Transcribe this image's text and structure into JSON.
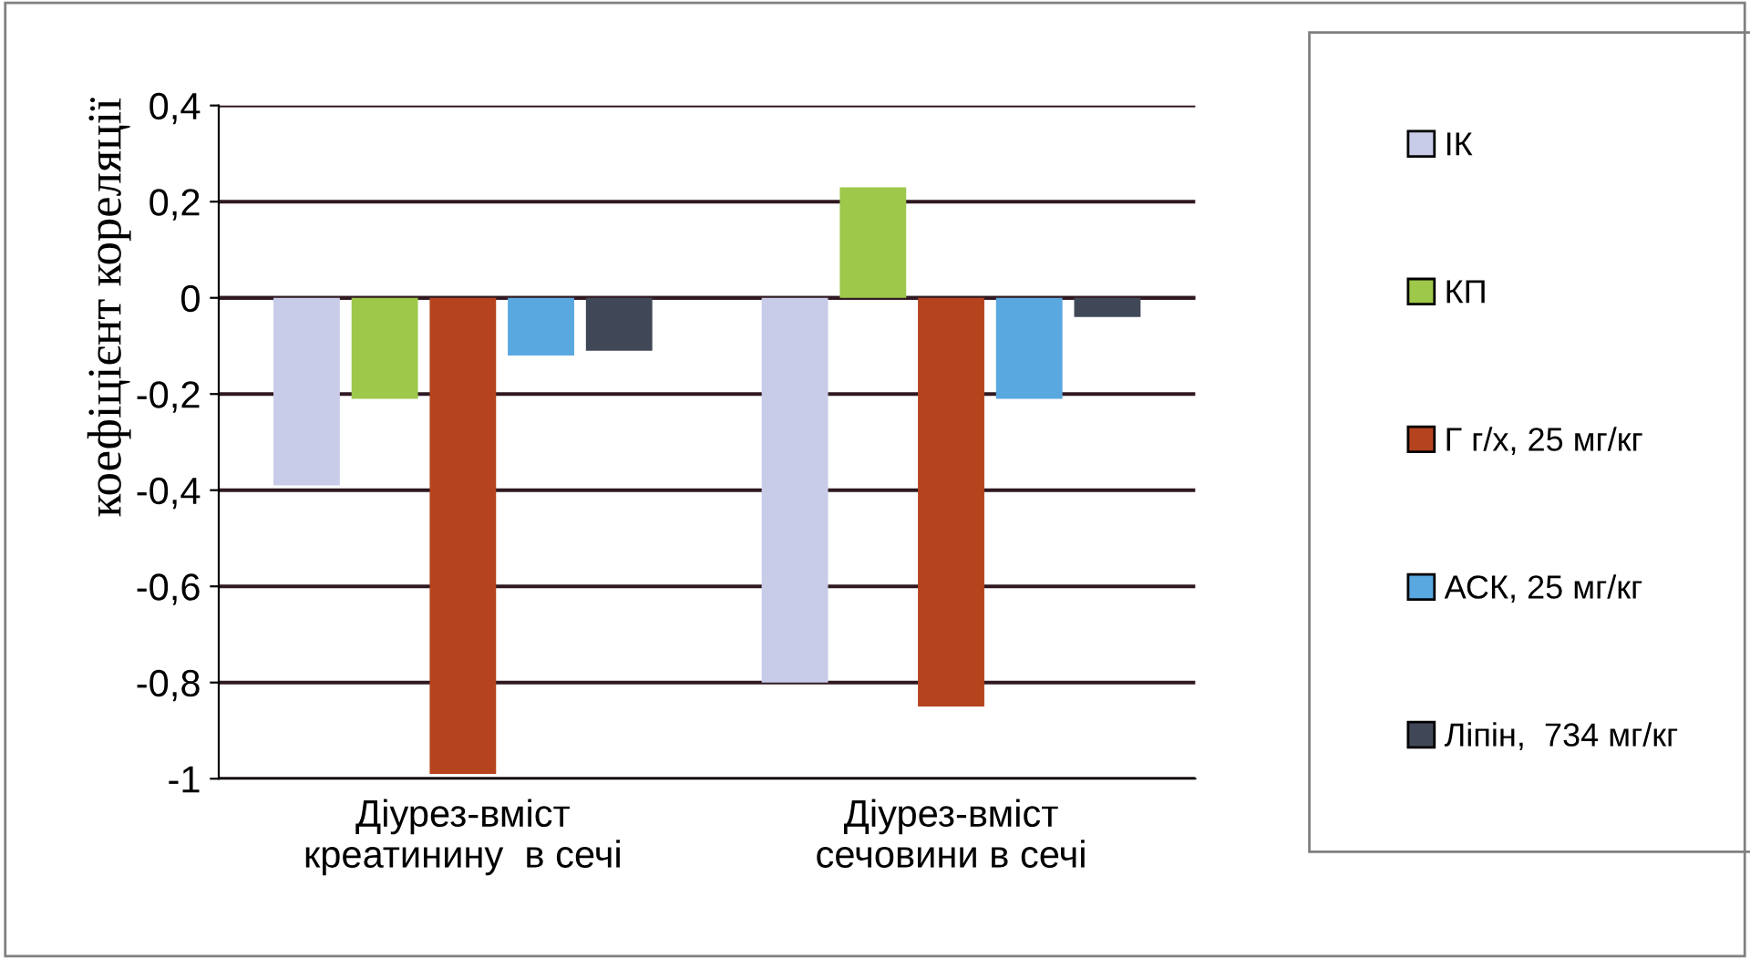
{
  "chart_data": {
    "type": "bar",
    "ylabel": "коефіцієнт кореляції",
    "categories": [
      "Діурез-вміст\nкреатинину  в сечі",
      "Діурез-вміст\nсечовини в сечі"
    ],
    "series": [
      {
        "name": "ІК",
        "color": "#c8cce8",
        "values": [
          -0.39,
          -0.8
        ]
      },
      {
        "name": "КП",
        "color": "#9dc84a",
        "values": [
          -0.21,
          0.23
        ]
      },
      {
        "name": "Г г/х, 25 мг/кг",
        "color": "#b5431e",
        "values": [
          -0.99,
          -0.85
        ]
      },
      {
        "name": "АСК, 25 мг/кг",
        "color": "#5aa8e0",
        "values": [
          -0.12,
          -0.21
        ]
      },
      {
        "name": "Ліпін,  734 мг/кг",
        "color": "#404858",
        "values": [
          -0.11,
          -0.04
        ]
      }
    ],
    "ylim": [
      -1,
      0.4
    ],
    "yticks": [
      {
        "value": -1,
        "label": "-1"
      },
      {
        "value": -0.8,
        "label": "-0,8"
      },
      {
        "value": -0.6,
        "label": "-0,6"
      },
      {
        "value": -0.4,
        "label": "-0,4"
      },
      {
        "value": -0.2,
        "label": "-0,2"
      },
      0,
      {
        "value": 0.2,
        "label": "0,2"
      },
      {
        "value": 0.4,
        "label": "0,4"
      }
    ],
    "grid": "y",
    "legend": "right"
  }
}
